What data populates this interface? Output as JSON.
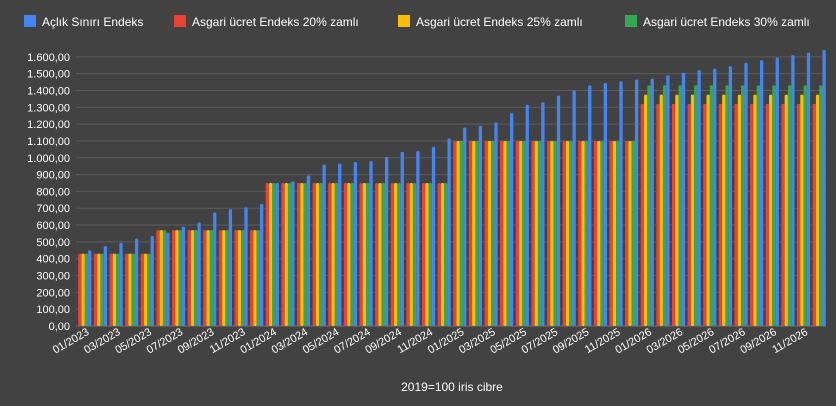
{
  "chart_data": {
    "type": "bar",
    "title": "",
    "xlabel": "2019=100 iris cibre",
    "ylabel": "",
    "ylim": [
      0,
      1700
    ],
    "ytick_step": 100,
    "ytick_labels": [
      "0,00",
      "100,00",
      "200,00",
      "300,00",
      "400,00",
      "500,00",
      "600,00",
      "700,00",
      "800,00",
      "900,00",
      "1.000,00",
      "1.100,00",
      "1.200,00",
      "1.300,00",
      "1.400,00",
      "1.500,00",
      "1.600,00"
    ],
    "grid": true,
    "legend_position": "top",
    "categories": [
      "01/2023",
      "02/2023",
      "03/2023",
      "04/2023",
      "05/2023",
      "06/2023",
      "07/2023",
      "08/2023",
      "09/2023",
      "10/2023",
      "11/2023",
      "12/2023",
      "01/2024",
      "02/2024",
      "03/2024",
      "04/2024",
      "05/2024",
      "06/2024",
      "07/2024",
      "08/2024",
      "09/2024",
      "10/2024",
      "11/2024",
      "12/2024",
      "01/2025",
      "02/2025",
      "03/2025",
      "04/2025",
      "05/2025",
      "06/2025",
      "07/2025",
      "08/2025",
      "09/2025",
      "10/2025",
      "11/2025",
      "12/2025",
      "01/2026",
      "02/2026",
      "03/2026",
      "04/2026",
      "05/2026",
      "06/2026",
      "07/2026",
      "08/2026",
      "09/2026",
      "10/2026",
      "11/2026",
      "12/2026"
    ],
    "xtick_labels": [
      "01/2023",
      "03/2023",
      "05/2023",
      "07/2023",
      "09/2023",
      "11/2023",
      "01/2024",
      "03/2024",
      "05/2024",
      "07/2024",
      "09/2024",
      "11/2024",
      "01/2025",
      "03/2025",
      "05/2025",
      "07/2025",
      "09/2025",
      "11/2025",
      "01/2026",
      "03/2026",
      "05/2026",
      "07/2026",
      "09/2026",
      "11/2026"
    ],
    "series": [
      {
        "name": "Açlık Sınırı Endeks",
        "color": "#4285f4",
        "values": [
          450,
          475,
          495,
          520,
          535,
          555,
          590,
          615,
          675,
          695,
          705,
          725,
          850,
          860,
          895,
          960,
          965,
          975,
          980,
          1005,
          1035,
          1040,
          1065,
          1115,
          1180,
          1190,
          1210,
          1265,
          1315,
          1330,
          1370,
          1400,
          1430,
          1445,
          1455,
          1465,
          1470,
          1490,
          1505,
          1520,
          1530,
          1545,
          1565,
          1580,
          1595,
          1610,
          1625,
          1640
        ]
      },
      {
        "name": "Asgari ücret Endeks 20% zamlı",
        "color": "#ea4335",
        "values": [
          430,
          430,
          430,
          430,
          430,
          570,
          570,
          570,
          570,
          570,
          570,
          570,
          850,
          850,
          850,
          850,
          850,
          850,
          850,
          850,
          850,
          850,
          850,
          850,
          1100,
          1100,
          1100,
          1100,
          1100,
          1100,
          1100,
          1100,
          1100,
          1100,
          1100,
          1100,
          1320,
          1320,
          1320,
          1320,
          1320,
          1320,
          1320,
          1320,
          1320,
          1320,
          1320,
          1320
        ]
      },
      {
        "name": "Asgari ücret Endeks 25% zamlı",
        "color": "#fbbc04",
        "values": [
          430,
          430,
          430,
          430,
          430,
          570,
          570,
          570,
          570,
          570,
          570,
          570,
          850,
          850,
          850,
          850,
          850,
          850,
          850,
          850,
          850,
          850,
          850,
          850,
          1100,
          1100,
          1100,
          1100,
          1100,
          1100,
          1100,
          1100,
          1100,
          1100,
          1100,
          1100,
          1375,
          1375,
          1375,
          1375,
          1375,
          1375,
          1375,
          1375,
          1375,
          1375,
          1375,
          1375
        ]
      },
      {
        "name": "Asgari ücret Endeks 30% zamlı",
        "color": "#34a853",
        "values": [
          430,
          430,
          430,
          430,
          430,
          570,
          570,
          570,
          570,
          570,
          570,
          570,
          850,
          850,
          850,
          850,
          850,
          850,
          850,
          850,
          850,
          850,
          850,
          850,
          1100,
          1100,
          1100,
          1100,
          1100,
          1100,
          1100,
          1100,
          1100,
          1100,
          1100,
          1100,
          1430,
          1430,
          1430,
          1430,
          1430,
          1430,
          1430,
          1430,
          1430,
          1430,
          1430,
          1430
        ]
      }
    ]
  }
}
